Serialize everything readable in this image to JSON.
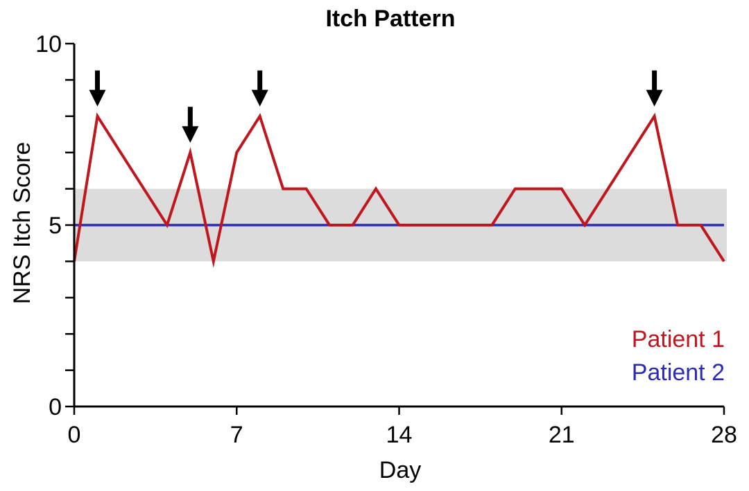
{
  "chart_data": {
    "type": "line",
    "title": "Itch Pattern",
    "xlabel": "Day",
    "ylabel": "NRS Itch Score",
    "xlim": [
      0,
      28
    ],
    "ylim": [
      0,
      10
    ],
    "x_ticks": [
      0,
      7,
      14,
      21,
      28
    ],
    "x_tick_labels": [
      "0",
      "7",
      "14",
      "21",
      "28"
    ],
    "y_ticks": [
      0,
      1,
      2,
      3,
      4,
      5,
      6,
      7,
      8,
      9,
      10
    ],
    "y_tick_labels": [
      "0",
      "",
      "",
      "",
      "",
      "5",
      "",
      "",
      "",
      "",
      "10"
    ],
    "grid": false,
    "legend_position": "bottom-right",
    "shaded_band": {
      "y_from": 4,
      "y_to": 6,
      "color": "#dcdcdc"
    },
    "arrows_at_days": [
      1,
      5,
      8,
      25
    ],
    "series": [
      {
        "name": "Patient 1",
        "color": "#c0161d",
        "x": [
          0,
          1,
          2,
          3,
          4,
          5,
          6,
          7,
          8,
          9,
          10,
          11,
          12,
          13,
          14,
          15,
          16,
          17,
          18,
          19,
          20,
          21,
          22,
          23,
          24,
          25,
          26,
          27,
          28
        ],
        "y": [
          4,
          8,
          7,
          6,
          5,
          7,
          4,
          7,
          8,
          6,
          6,
          5,
          5,
          6,
          5,
          5,
          5,
          5,
          5,
          6,
          6,
          6,
          5,
          6,
          7,
          8,
          5,
          5,
          4
        ]
      },
      {
        "name": "Patient 2",
        "color": "#2b2bb8",
        "x": [
          0,
          28
        ],
        "y": [
          5,
          5
        ]
      }
    ]
  }
}
